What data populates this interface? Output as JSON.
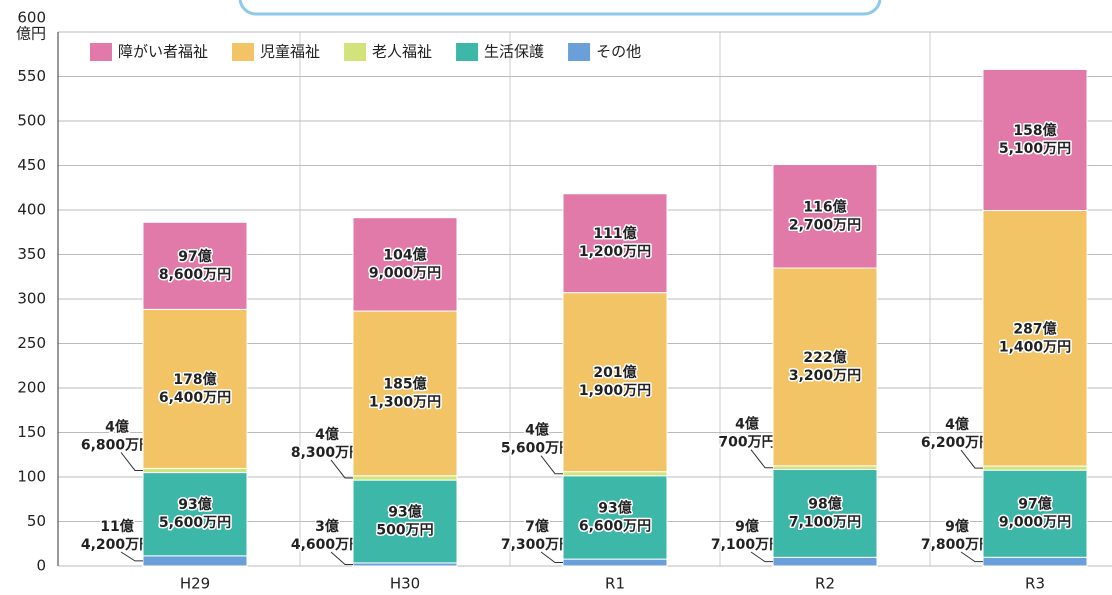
{
  "chart_data": {
    "type": "bar",
    "stacked": true,
    "y_unit": "億円",
    "categories": [
      "H29",
      "H30",
      "R1",
      "R2",
      "R3"
    ],
    "ylim": [
      0,
      600
    ],
    "yticks": [
      0,
      50,
      100,
      150,
      200,
      250,
      300,
      350,
      400,
      450,
      500,
      550,
      600
    ],
    "grid": true,
    "legend": "top-left",
    "series": [
      {
        "name": "障がい者福祉",
        "color": "#e27aa9",
        "label_color": "#9c2464",
        "values": [
          97.86,
          104.9,
          111.12,
          116.27,
          158.51
        ],
        "value_labels": [
          [
            "97億",
            "8,600万円"
          ],
          [
            "104億",
            "9,000万円"
          ],
          [
            "111億",
            "1,200万円"
          ],
          [
            "116億",
            "2,700万円"
          ],
          [
            "158億",
            "5,100万円"
          ]
        ]
      },
      {
        "name": "児童福祉",
        "color": "#f2c466",
        "label_color": "#8a6a14",
        "values": [
          178.64,
          185.13,
          201.19,
          222.32,
          287.14
        ],
        "value_labels": [
          [
            "178億",
            "6,400万円"
          ],
          [
            "185億",
            "1,300万円"
          ],
          [
            "201億",
            "1,900万円"
          ],
          [
            "222億",
            "3,200万円"
          ],
          [
            "287億",
            "1,400万円"
          ]
        ]
      },
      {
        "name": "老人福祉",
        "color": "#d3e37c",
        "label_color": "#6b8a22",
        "values": [
          4.68,
          4.83,
          4.56,
          4.07,
          4.62
        ],
        "value_labels": [
          [
            "4億",
            "6,800万円"
          ],
          [
            "4億",
            "8,300万円"
          ],
          [
            "4億",
            "5,600万円"
          ],
          [
            "4億",
            "700万円"
          ],
          [
            "4億",
            "6,200万円"
          ]
        ]
      },
      {
        "name": "生活保護",
        "color": "#3db8a8",
        "label_color": "#ffffff",
        "values": [
          93.56,
          93.05,
          93.66,
          98.71,
          97.9
        ],
        "value_labels": [
          [
            "93億",
            "5,600万円"
          ],
          [
            "93億",
            "500万円"
          ],
          [
            "93億",
            "6,600万円"
          ],
          [
            "98億",
            "7,100万円"
          ],
          [
            "97億",
            "9,000万円"
          ]
        ]
      },
      {
        "name": "その他",
        "color": "#6b9fd9",
        "label_color": "#1a4a8a",
        "values": [
          11.42,
          3.46,
          7.73,
          9.71,
          9.78
        ],
        "value_labels": [
          [
            "11億",
            "4,200万円"
          ],
          [
            "3億",
            "4,600万円"
          ],
          [
            "7億",
            "7,300万円"
          ],
          [
            "9億",
            "7,100万円"
          ],
          [
            "9億",
            "7,800万円"
          ]
        ]
      }
    ]
  }
}
